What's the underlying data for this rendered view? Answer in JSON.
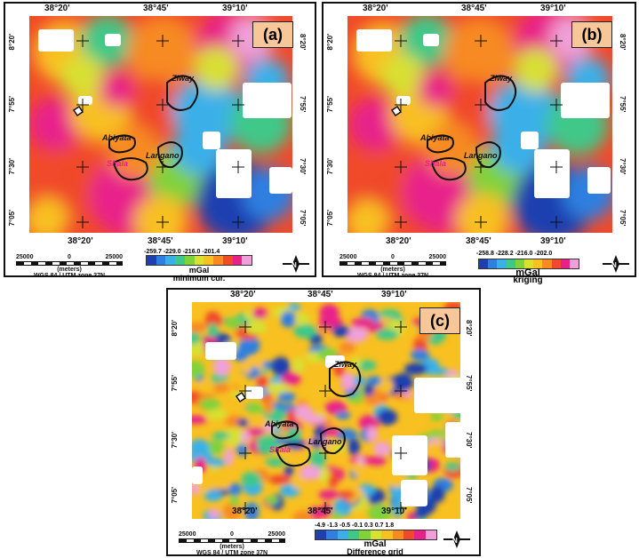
{
  "panels": [
    {
      "id": "a",
      "letter": "(a)",
      "x_ticks": [
        "38°20'",
        "38°45'",
        "39°10'"
      ],
      "y_ticks": [
        "8°20'",
        "7°55'",
        "7°30'",
        "7°05'"
      ],
      "colorbar_values": "-259.7   -229.0   -216.0   -201.4",
      "unit": "mGal",
      "method": "minimum cur."
    },
    {
      "id": "b",
      "letter": "(b)",
      "x_ticks": [
        "38°20'",
        "38°45'",
        "39°10'"
      ],
      "y_ticks": [
        "8°20'",
        "7°55'",
        "7°30'",
        "7°05'"
      ],
      "colorbar_values": "-258.8   -228.2   -216.0   -202.0",
      "unit": "mGal",
      "method": "kriging"
    },
    {
      "id": "c",
      "letter": "(c)",
      "x_ticks": [
        "38°20'",
        "38°45'",
        "39°10'"
      ],
      "y_ticks": [
        "8°20'",
        "7°55'",
        "7°30'",
        "7°05'"
      ],
      "colorbar_values": "-4.9  -1.3  -0.5  -0.1  0.3  0.7  1.8",
      "unit": "mGal",
      "method": "Difference grid"
    }
  ],
  "lakes": [
    "Ziway",
    "Abiyata",
    "Langano",
    "Shala"
  ],
  "scale": {
    "left": "25000",
    "mid": "0",
    "right": "25000",
    "unit": "(meters)",
    "projection": "WGS 84 / UTM zone 37N"
  },
  "north_label": "N",
  "colors": {
    "ramp": [
      "#1e3fb0",
      "#2f7fe0",
      "#3bb0e8",
      "#40c888",
      "#7fd23a",
      "#d8e030",
      "#f8c020",
      "#f78a20",
      "#f04a2a",
      "#e8208a",
      "#f0a0d8",
      "#fff6fb"
    ]
  }
}
